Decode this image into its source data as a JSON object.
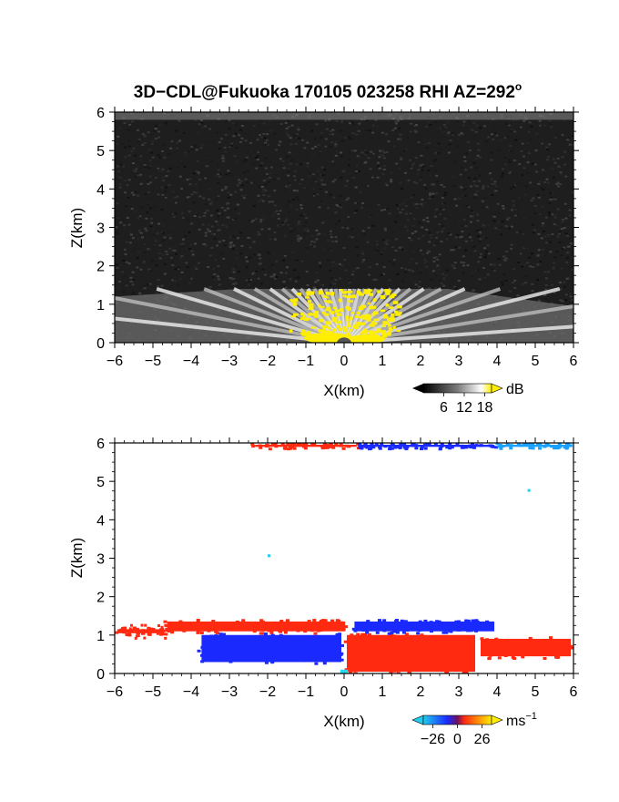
{
  "title": "3D−CDL@Fukuoka 170105 023258 RHI AZ=292",
  "title_degree": "o",
  "chart_data": [
    {
      "type": "heatmap",
      "name": "reflectivity",
      "xlabel": "X(km)",
      "ylabel": "Z(km)",
      "xlim": [
        -6,
        6
      ],
      "ylim": [
        0,
        6
      ],
      "xticks": [
        -6,
        -5,
        -4,
        -3,
        -2,
        -1,
        0,
        1,
        2,
        3,
        4,
        5,
        6
      ],
      "yticks": [
        0,
        1,
        2,
        3,
        4,
        5,
        6
      ],
      "background": "#1e1e1e",
      "features": [
        {
          "kind": "noise",
          "z": [
            0,
            6
          ],
          "color": "#2a2a2a"
        },
        {
          "kind": "bright_band",
          "x": [
            -6,
            6
          ],
          "z": [
            5.8,
            6.0
          ],
          "color": "#8a8a8a"
        },
        {
          "kind": "fan_of_rays",
          "center_x": 0,
          "z_top": 1.4,
          "x_extent": [
            -6,
            6
          ],
          "color": "#cfcfcf"
        },
        {
          "kind": "strong_echo",
          "x": [
            -1.2,
            1.2
          ],
          "z": [
            0,
            1.4
          ],
          "color": "#ffee00"
        },
        {
          "kind": "blind_zone",
          "x": [
            -0.2,
            0.2
          ],
          "z": [
            0,
            0.2
          ],
          "color": "#555555"
        }
      ],
      "colorbar": {
        "unit": "dB",
        "ticks": [
          6,
          12,
          18
        ],
        "range": [
          0,
          20
        ],
        "colors": [
          "#000000",
          "#7a7a7a",
          "#ffffff",
          "#ffee00"
        ]
      }
    },
    {
      "type": "heatmap",
      "name": "doppler_velocity",
      "xlabel": "X(km)",
      "ylabel": "Z(km)",
      "xlim": [
        -6,
        6
      ],
      "ylim": [
        0,
        6
      ],
      "xticks": [
        -6,
        -5,
        -4,
        -3,
        -2,
        -1,
        0,
        1,
        2,
        3,
        4,
        5,
        6
      ],
      "yticks": [
        0,
        1,
        2,
        3,
        4,
        5,
        6
      ],
      "background": "#ffffff",
      "regions": [
        {
          "label": "approaching",
          "x": [
            -4.7,
            0.1
          ],
          "z": [
            1.05,
            1.4
          ],
          "color": "#ff2a10"
        },
        {
          "label": "receding",
          "x": [
            -3.8,
            0.0
          ],
          "z": [
            0.25,
            1.05
          ],
          "color": "#1a2aff"
        },
        {
          "label": "approaching",
          "x": [
            0.0,
            3.5
          ],
          "z": [
            0.0,
            1.05
          ],
          "color": "#ff2a10"
        },
        {
          "label": "receding",
          "x": [
            0.2,
            4.0
          ],
          "z": [
            1.05,
            1.4
          ],
          "color": "#1a2aff"
        },
        {
          "label": "approaching",
          "x": [
            3.5,
            6.0
          ],
          "z": [
            0.4,
            0.95
          ],
          "color": "#ff2a10"
        },
        {
          "label": "approaching",
          "x": [
            -6.0,
            -4.7
          ],
          "z": [
            1.0,
            1.2
          ],
          "color": "#ff2a10"
        },
        {
          "label": "top_band_red",
          "x": [
            -2.4,
            0.4
          ],
          "z": [
            5.85,
            6.0
          ],
          "color": "#ff2a10"
        },
        {
          "label": "top_band_blue",
          "x": [
            0.4,
            4.0
          ],
          "z": [
            5.85,
            6.0
          ],
          "color": "#1a2aff"
        },
        {
          "label": "top_band_cyan",
          "x": [
            4.0,
            6.0
          ],
          "z": [
            5.85,
            6.0
          ],
          "color": "#1aa0ff"
        },
        {
          "label": "speck",
          "x": [
            -2.0,
            -2.0
          ],
          "z": [
            3.1,
            3.1
          ],
          "color": "#22ccee"
        },
        {
          "label": "speck",
          "x": [
            4.8,
            4.8
          ],
          "z": [
            4.8,
            4.8
          ],
          "color": "#22ccee"
        },
        {
          "label": "near_zero",
          "x": [
            -0.1,
            0.1
          ],
          "z": [
            0,
            0.1
          ],
          "color": "#22ddee"
        }
      ],
      "colorbar": {
        "unit": "ms",
        "unit_exponent": "−1",
        "ticks": [
          "−26",
          "0",
          "26"
        ],
        "range": [
          -36,
          36
        ],
        "colors": [
          "#22ccee",
          "#1a2aff",
          "#ff2a10",
          "#ffee00"
        ]
      }
    }
  ]
}
